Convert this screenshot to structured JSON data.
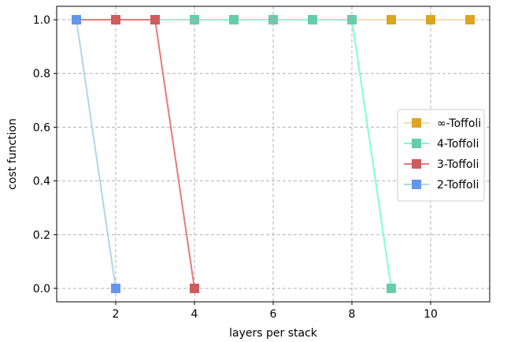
{
  "chart_data": {
    "type": "line",
    "xlabel": "layers per stack",
    "ylabel": "cost function",
    "xlim": [
      0.5,
      11.5
    ],
    "ylim": [
      -0.05,
      1.05
    ],
    "xticks": [
      2,
      4,
      6,
      8,
      10
    ],
    "yticks": [
      0.0,
      0.2,
      0.4,
      0.6,
      0.8,
      1.0
    ],
    "xtick_labels": [
      "2",
      "4",
      "6",
      "8",
      "10"
    ],
    "ytick_labels": [
      "0.0",
      "0.2",
      "0.4",
      "0.6",
      "0.8",
      "1.0"
    ],
    "grid": true,
    "legend_position": "center-right",
    "series": [
      {
        "name": "∞-Toffoli",
        "line_color": "#f5deb3",
        "marker_color": "#daa520",
        "x": [
          1,
          2,
          3,
          4,
          5,
          6,
          7,
          8,
          9,
          10,
          11
        ],
        "y": [
          1,
          1,
          1,
          1,
          1,
          1,
          1,
          1,
          1,
          1,
          1
        ]
      },
      {
        "name": "4-Toffoli",
        "line_color": "#7fffd4",
        "marker_color": "#66cdaa",
        "x": [
          1,
          2,
          3,
          4,
          5,
          6,
          7,
          8,
          9
        ],
        "y": [
          1,
          1,
          1,
          1,
          1,
          1,
          1,
          1,
          0
        ]
      },
      {
        "name": "3-Toffoli",
        "line_color": "#e67a7a",
        "marker_color": "#cd5c5c",
        "x": [
          1,
          2,
          3,
          4
        ],
        "y": [
          1,
          1,
          1,
          0
        ]
      },
      {
        "name": "2-Toffoli",
        "line_color": "#add8e6",
        "marker_color": "#6495ed",
        "x": [
          1,
          2
        ],
        "y": [
          1,
          0
        ]
      }
    ]
  }
}
